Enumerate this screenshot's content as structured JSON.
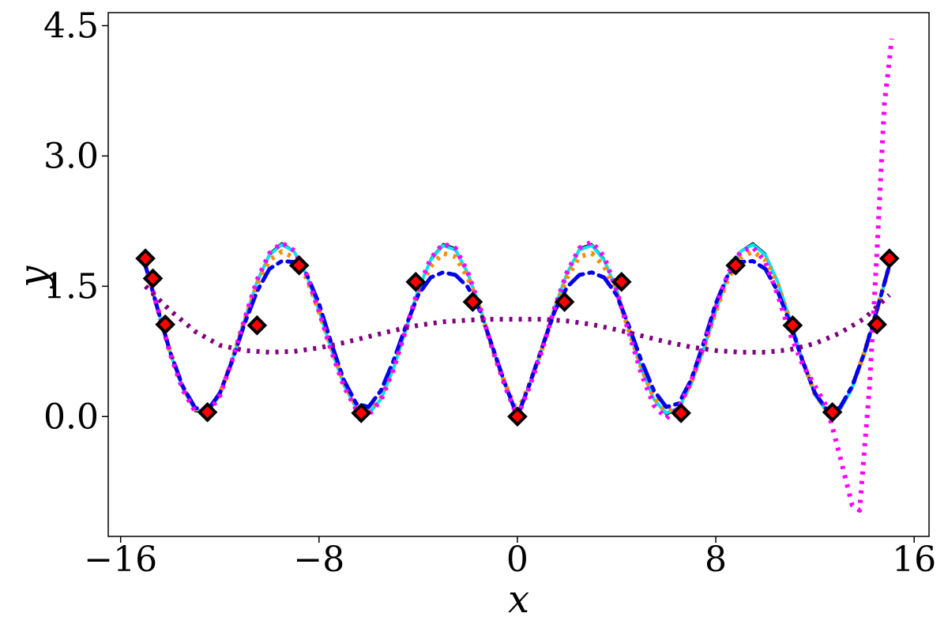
{
  "chart_data": {
    "type": "line",
    "xlabel": "x",
    "ylabel": "y",
    "xlim": [
      -16.5,
      16.6
    ],
    "ylim": [
      -1.38,
      4.65
    ],
    "xticks": [
      -16,
      -8,
      0,
      8,
      16
    ],
    "xtick_labels": [
      "−16",
      "−8",
      "0",
      "8",
      "16"
    ],
    "yticks": [
      0.0,
      1.5,
      3.0,
      4.5
    ],
    "ytick_labels": [
      "0.0",
      "1.5",
      "3.0",
      "4.5"
    ],
    "grid": false,
    "legend": "none",
    "series": [
      {
        "style": "solid",
        "color": "#000000",
        "x": [
          -15,
          -14.5,
          -14,
          -13.5,
          -13,
          -12.5,
          -12,
          -11.5,
          -11,
          -10.5,
          -10,
          -9.5,
          -9,
          -8.5,
          -8,
          -7.5,
          -7,
          -6.5,
          -6,
          -5.5,
          -5,
          -4.5,
          -4,
          -3.5,
          -3,
          -2.5,
          -2,
          -1.5,
          -1,
          -0.5,
          0,
          0.5,
          1,
          1.5,
          2,
          2.5,
          3,
          3.5,
          4,
          4.5,
          5,
          5.5,
          6,
          6.5,
          7,
          7.5,
          8,
          8.5,
          9,
          9.5,
          10,
          10.5,
          11,
          11.5,
          12,
          12.5,
          13,
          13.5,
          14,
          14.5,
          15
        ],
        "y": [
          1.76,
          1.24,
          0.72,
          0.31,
          0.06,
          0.03,
          0.24,
          0.65,
          1.12,
          1.57,
          1.88,
          2.0,
          1.91,
          1.63,
          1.21,
          0.75,
          0.35,
          0.08,
          0.02,
          0.19,
          0.54,
          1.0,
          1.47,
          1.82,
          1.99,
          1.94,
          1.66,
          1.25,
          0.77,
          0.35,
          0.0,
          0.35,
          0.77,
          1.25,
          1.66,
          1.94,
          1.99,
          1.82,
          1.47,
          1.0,
          0.54,
          0.19,
          0.02,
          0.08,
          0.35,
          0.75,
          1.21,
          1.63,
          1.91,
          2.0,
          1.88,
          1.57,
          1.12,
          0.65,
          0.24,
          0.03,
          0.06,
          0.31,
          0.72,
          1.24,
          1.76
        ]
      },
      {
        "style": "solid",
        "color": "#00e5ee",
        "x": [
          -15,
          -14.5,
          -14,
          -13.5,
          -13,
          -12.5,
          -12,
          -11.5,
          -11,
          -10.5,
          -10,
          -9.5,
          -9,
          -8.5,
          -8,
          -7.5,
          -7,
          -6.5,
          -6,
          -5.5,
          -5,
          -4.5,
          -4,
          -3.5,
          -3,
          -2.5,
          -2,
          -1.5,
          -1,
          -0.5,
          0,
          0.5,
          1,
          1.5,
          2,
          2.5,
          3,
          3.5,
          4,
          4.5,
          5,
          5.5,
          6,
          6.5,
          7,
          7.5,
          8,
          8.5,
          9,
          9.5,
          10,
          10.5,
          11,
          11.5,
          12,
          12.5,
          13,
          13.5,
          14,
          14.5,
          15
        ],
        "y": [
          1.74,
          1.23,
          0.73,
          0.33,
          0.08,
          0.05,
          0.25,
          0.65,
          1.11,
          1.55,
          1.86,
          1.98,
          1.9,
          1.63,
          1.22,
          0.77,
          0.37,
          0.1,
          0.04,
          0.2,
          0.55,
          1.0,
          1.46,
          1.8,
          1.97,
          1.92,
          1.65,
          1.25,
          0.78,
          0.37,
          0.03,
          0.37,
          0.78,
          1.25,
          1.65,
          1.92,
          1.97,
          1.8,
          1.46,
          1.0,
          0.55,
          0.2,
          0.04,
          0.1,
          0.37,
          0.77,
          1.22,
          1.63,
          1.9,
          1.98,
          1.86,
          1.55,
          1.11,
          0.65,
          0.25,
          0.05,
          0.08,
          0.33,
          0.73,
          1.23,
          1.74
        ]
      },
      {
        "style": "dotted",
        "color": "#ff8c00",
        "x": [
          -15,
          -14.5,
          -14,
          -13.5,
          -13,
          -12.5,
          -12,
          -11.5,
          -11,
          -10.5,
          -10,
          -9.5,
          -9,
          -8.5,
          -8,
          -7.5,
          -7,
          -6.5,
          -6,
          -5.5,
          -5,
          -4.5,
          -4,
          -3.5,
          -3,
          -2.5,
          -2,
          -1.5,
          -1,
          -0.5,
          0,
          0.5,
          1,
          1.5,
          2,
          2.5,
          3,
          3.5,
          4,
          4.5,
          5,
          5.5,
          6,
          6.5,
          7,
          7.5,
          8,
          8.5,
          9,
          9.5,
          10,
          10.5,
          11,
          11.5,
          12,
          12.5,
          13,
          13.5,
          14,
          14.5,
          15
        ],
        "y": [
          1.74,
          1.23,
          0.74,
          0.34,
          0.09,
          0.06,
          0.26,
          0.65,
          1.1,
          1.52,
          1.8,
          1.9,
          1.83,
          1.59,
          1.21,
          0.78,
          0.39,
          0.12,
          0.06,
          0.22,
          0.56,
          0.99,
          1.42,
          1.73,
          1.88,
          1.84,
          1.6,
          1.23,
          0.78,
          0.38,
          0.05,
          0.38,
          0.78,
          1.23,
          1.6,
          1.84,
          1.88,
          1.73,
          1.42,
          0.99,
          0.56,
          0.22,
          0.06,
          0.12,
          0.39,
          0.78,
          1.21,
          1.59,
          1.83,
          1.9,
          1.8,
          1.52,
          1.1,
          0.65,
          0.26,
          0.06,
          0.09,
          0.34,
          0.74,
          1.23,
          1.74
        ]
      },
      {
        "style": "dashdot",
        "color": "#0000ee",
        "x": [
          -15,
          -14.5,
          -14,
          -13.5,
          -13,
          -12.5,
          -12,
          -11.5,
          -11,
          -10.5,
          -10,
          -9.5,
          -9,
          -8.5,
          -8,
          -7.5,
          -7,
          -6.5,
          -6,
          -5.5,
          -5,
          -4.5,
          -4,
          -3.5,
          -3,
          -2.5,
          -2,
          -1.5,
          -1,
          -0.5,
          0,
          0.5,
          1,
          1.5,
          2,
          2.5,
          3,
          3.5,
          4,
          4.5,
          5,
          5.5,
          6,
          6.5,
          7,
          7.5,
          8,
          8.5,
          9,
          9.5,
          10,
          10.5,
          11,
          11.5,
          12,
          12.5,
          13,
          13.5,
          14,
          14.5,
          15
        ],
        "y": [
          1.74,
          1.23,
          0.74,
          0.35,
          0.1,
          0.07,
          0.27,
          0.64,
          1.07,
          1.44,
          1.7,
          1.79,
          1.78,
          1.64,
          1.3,
          0.84,
          0.42,
          0.15,
          0.11,
          0.3,
          0.64,
          1.04,
          1.4,
          1.6,
          1.66,
          1.63,
          1.49,
          1.21,
          0.8,
          0.38,
          0.0,
          0.38,
          0.8,
          1.21,
          1.49,
          1.63,
          1.66,
          1.6,
          1.4,
          1.04,
          0.64,
          0.3,
          0.11,
          0.15,
          0.42,
          0.84,
          1.3,
          1.64,
          1.78,
          1.79,
          1.7,
          1.44,
          1.07,
          0.64,
          0.27,
          0.07,
          0.1,
          0.35,
          0.74,
          1.23,
          1.74
        ]
      },
      {
        "style": "dotted",
        "color": "#ff00ff",
        "x": [
          -15,
          -14.5,
          -14,
          -13.5,
          -13,
          -12.5,
          -12,
          -11.5,
          -11,
          -10.5,
          -10,
          -9.5,
          -9,
          -8.5,
          -8,
          -7.5,
          -7,
          -6.5,
          -6,
          -5.5,
          -5,
          -4.5,
          -4,
          -3.5,
          -3,
          -2.5,
          -2,
          -1.5,
          -1,
          -0.5,
          0,
          0.5,
          1,
          1.5,
          2,
          2.5,
          3,
          3.5,
          4,
          4.5,
          5,
          5.5,
          6,
          6.5,
          7,
          7.5,
          8,
          8.5,
          9,
          9.5,
          10,
          10.5,
          11,
          11.5,
          12,
          12.5,
          13,
          13.5,
          13.8,
          14.2,
          14.5,
          14.8,
          15.1
        ],
        "y": [
          1.76,
          1.24,
          0.72,
          0.31,
          0.06,
          0.03,
          0.24,
          0.65,
          1.12,
          1.57,
          1.88,
          2.0,
          1.91,
          1.63,
          1.21,
          0.75,
          0.35,
          0.08,
          0.02,
          0.19,
          0.54,
          1.0,
          1.47,
          1.82,
          1.99,
          1.94,
          1.66,
          1.25,
          0.77,
          0.35,
          0.0,
          0.35,
          0.77,
          1.25,
          1.66,
          1.94,
          2.01,
          1.84,
          1.45,
          0.96,
          0.49,
          0.13,
          -0.02,
          0.1,
          0.4,
          0.8,
          1.25,
          1.65,
          1.9,
          1.95,
          1.78,
          1.4,
          0.95,
          0.6,
          0.35,
          0.1,
          -0.45,
          -1.02,
          -1.08,
          0.35,
          1.9,
          3.6,
          4.35
        ]
      },
      {
        "style": "dotted",
        "color": "#800080",
        "x": [
          -15,
          -14,
          -13,
          -12,
          -11,
          -10,
          -9,
          -8,
          -7,
          -6,
          -5,
          -4,
          -3,
          -2,
          -1,
          0,
          1,
          2,
          3,
          4,
          5,
          6,
          7,
          8,
          9,
          10,
          11,
          12,
          13,
          14,
          15
        ],
        "y": [
          1.5,
          1.22,
          0.98,
          0.82,
          0.76,
          0.74,
          0.75,
          0.79,
          0.85,
          0.92,
          0.99,
          1.05,
          1.09,
          1.11,
          1.12,
          1.12,
          1.12,
          1.1,
          1.06,
          1.0,
          0.93,
          0.86,
          0.8,
          0.76,
          0.74,
          0.74,
          0.77,
          0.84,
          0.96,
          1.13,
          1.4
        ]
      }
    ],
    "markers": {
      "color": "#ff0000",
      "edge_color": "#000000",
      "shape": "diamond",
      "x": [
        -15,
        -14.7,
        -14.2,
        -12.5,
        -10.5,
        -8.8,
        -6.3,
        -4.1,
        -1.8,
        0,
        1.9,
        4.2,
        6.6,
        8.8,
        11.1,
        12.7,
        14.5,
        15.0
      ],
      "y": [
        1.82,
        1.59,
        1.06,
        0.05,
        1.05,
        1.74,
        0.04,
        1.55,
        1.32,
        0.0,
        1.32,
        1.55,
        0.04,
        1.74,
        1.05,
        0.05,
        1.06,
        1.82
      ]
    }
  }
}
